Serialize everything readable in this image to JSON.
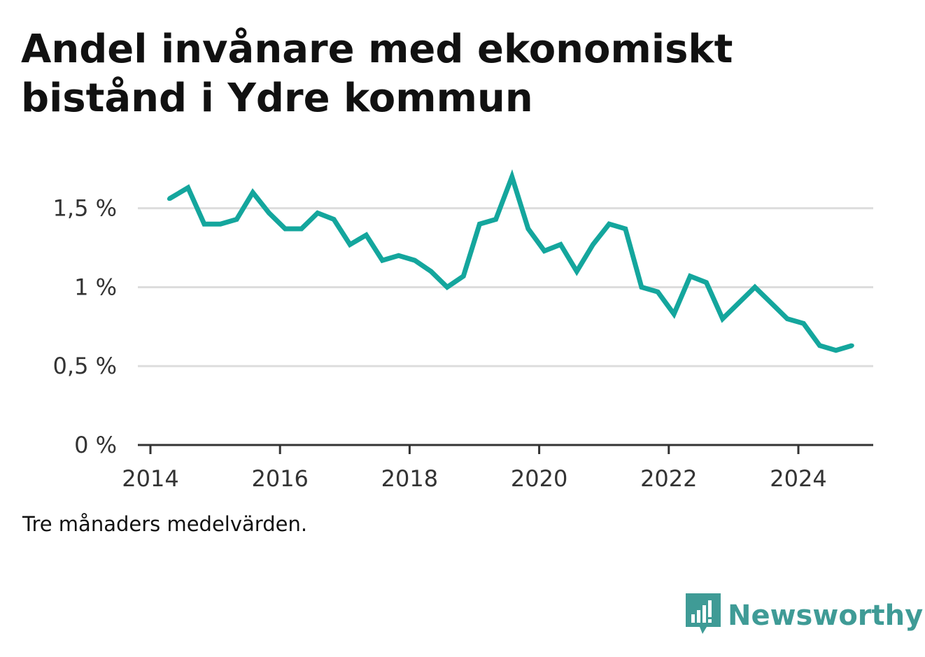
{
  "title": "Andel invånare med ekonomiskt bistånd i Ydre kommun",
  "footnote": "Tre månaders medelvärden.",
  "brand": {
    "name": "Newsworthy",
    "icon": "bar-chart-speech-bubble-icon",
    "color": "#3f9b96"
  },
  "colors": {
    "line": "#14a69d",
    "grid": "#dddddd",
    "axis": "#333333"
  },
  "chart_data": {
    "type": "line",
    "title": "Andel invånare med ekonomiskt bistånd i Ydre kommun",
    "xlabel": "",
    "ylabel": "",
    "xlim": [
      2014,
      2025.35
    ],
    "ylim": [
      0,
      1.8
    ],
    "x_ticks": [
      {
        "value": 2014,
        "label": "2014"
      },
      {
        "value": 2016,
        "label": "2016"
      },
      {
        "value": 2018,
        "label": "2018"
      },
      {
        "value": 2020,
        "label": "2020"
      },
      {
        "value": 2022,
        "label": "2022"
      },
      {
        "value": 2024,
        "label": "2024"
      }
    ],
    "y_ticks": [
      {
        "value": 0,
        "label": "0 %"
      },
      {
        "value": 0.5,
        "label": "0,5 %"
      },
      {
        "value": 1,
        "label": "1 %"
      },
      {
        "value": 1.5,
        "label": "1,5 %"
      }
    ],
    "grid": true,
    "legend": "none",
    "series": [
      {
        "x": [
          2014.29,
          2014.58,
          2014.83,
          2015.08,
          2015.33,
          2015.58,
          2015.83,
          2016.08,
          2016.33,
          2016.58,
          2016.83,
          2017.08,
          2017.33,
          2017.58,
          2017.83,
          2018.08,
          2018.33,
          2018.58,
          2018.83,
          2019.08,
          2019.33,
          2019.58,
          2019.83,
          2020.08,
          2020.33,
          2020.58,
          2020.83,
          2021.08,
          2021.33,
          2021.58,
          2021.83,
          2022.08,
          2022.33,
          2022.58,
          2022.83,
          2023.08,
          2023.33,
          2023.58,
          2023.83,
          2024.08,
          2024.33,
          2024.58,
          2024.83
        ],
        "y": [
          1.56,
          1.63,
          1.4,
          1.4,
          1.43,
          1.6,
          1.47,
          1.37,
          1.37,
          1.47,
          1.43,
          1.27,
          1.33,
          1.17,
          1.2,
          1.17,
          1.1,
          1.0,
          1.07,
          1.4,
          1.43,
          1.7,
          1.37,
          1.23,
          1.27,
          1.1,
          1.27,
          1.4,
          1.37,
          1.0,
          0.97,
          0.83,
          1.07,
          1.03,
          0.8,
          0.9,
          1.0,
          0.9,
          0.8,
          0.77,
          0.63,
          0.6,
          0.63
        ]
      }
    ]
  }
}
